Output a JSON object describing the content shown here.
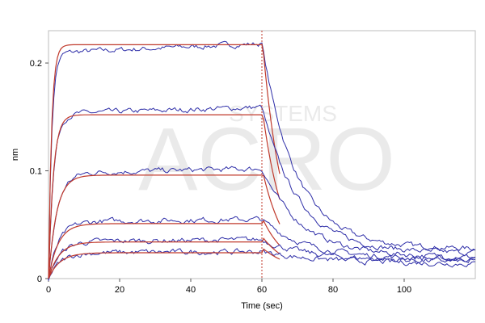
{
  "chart_data": {
    "type": "line",
    "title": "",
    "xlabel": "Time (sec)",
    "ylabel": "nm",
    "xlim": [
      0,
      120
    ],
    "ylim": [
      0,
      0.23
    ],
    "x_ticks": [
      0,
      20,
      40,
      60,
      80,
      100
    ],
    "y_ticks": [
      0,
      0.1,
      0.2
    ],
    "y_tick_labels": [
      "0",
      "0.1",
      "0.2"
    ],
    "grid": false,
    "legend": "none",
    "association_end": 60,
    "dissociation_end": 120,
    "fit_end": 65,
    "fit_color": "#c0392b",
    "data_color": "#2e2ea8",
    "series": [
      {
        "plateau": 0.218,
        "ka": 1.1,
        "kd": 0.075,
        "residual": 0.03,
        "fit_plateau": 0.217
      },
      {
        "plateau": 0.159,
        "ka": 0.7,
        "kd": 0.07,
        "residual": 0.026,
        "fit_plateau": 0.152
      },
      {
        "plateau": 0.102,
        "ka": 0.42,
        "kd": 0.065,
        "residual": 0.022,
        "fit_plateau": 0.096
      },
      {
        "plateau": 0.055,
        "ka": 0.35,
        "kd": 0.06,
        "residual": 0.02,
        "fit_plateau": 0.051
      },
      {
        "plateau": 0.036,
        "ka": 0.32,
        "kd": 0.055,
        "residual": 0.018,
        "fit_plateau": 0.034
      },
      {
        "plateau": 0.025,
        "ka": 0.3,
        "kd": 0.05,
        "residual": 0.016,
        "fit_plateau": 0.024
      }
    ],
    "watermark_lines": [
      "ACRO",
      "SYSTEMS"
    ]
  }
}
